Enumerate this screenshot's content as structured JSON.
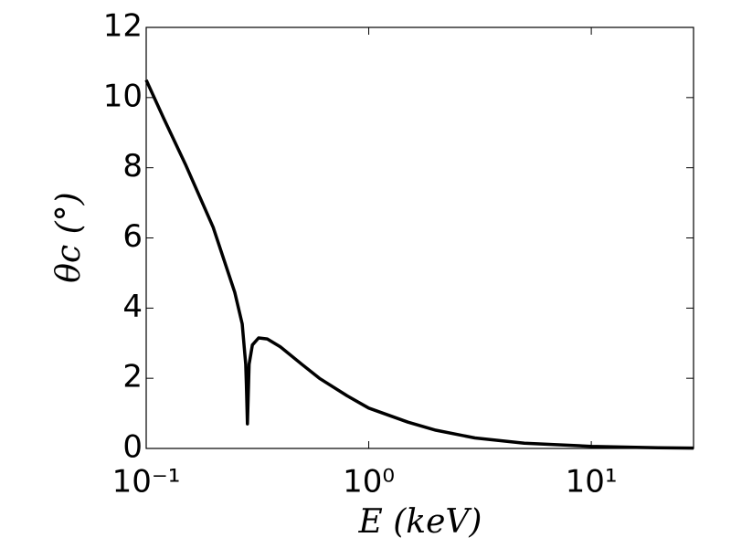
{
  "chart_data": {
    "type": "line",
    "x_label": "E (keV)",
    "y_label": "θc (°)",
    "x": [
      0.1,
      0.12,
      0.15,
      0.2,
      0.25,
      0.27,
      0.28,
      0.282,
      0.285,
      0.29,
      0.3,
      0.32,
      0.35,
      0.4,
      0.5,
      0.6,
      0.8,
      1,
      1.5,
      2,
      3,
      5,
      10,
      20,
      28.8
    ],
    "series": [
      {
        "color": "#000000",
        "values": [
          10.5,
          9.4,
          8.1,
          6.3,
          4.45,
          3.55,
          2.4,
          1.8,
          0.7,
          2.4,
          2.95,
          3.15,
          3.12,
          2.9,
          2.4,
          2.0,
          1.5,
          1.15,
          0.75,
          0.52,
          0.3,
          0.15,
          0.06,
          0.02,
          0.01
        ]
      }
    ],
    "xlim": [
      0.1,
      28.8
    ],
    "x_log": true,
    "xticks": [
      {
        "value": 0.1,
        "label": "10⁻¹"
      },
      {
        "value": 1,
        "label": "10⁰"
      },
      {
        "value": 10,
        "label": "10¹"
      }
    ],
    "ylim": [
      0,
      12
    ],
    "yticks": [
      0,
      2,
      4,
      6,
      8,
      10,
      12
    ],
    "grid": false
  }
}
